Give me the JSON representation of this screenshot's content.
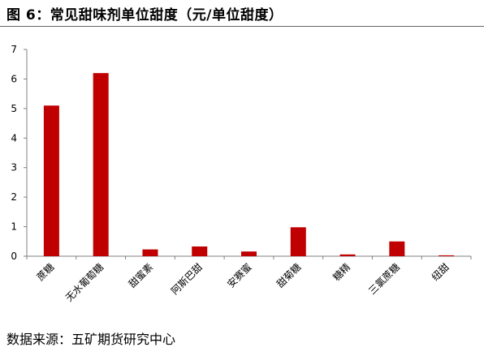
{
  "title": "图 6：常见甜味剂单位甜度（元/单位甜度）",
  "source": "数据来源：五矿期货研究中心",
  "colors": {
    "bar": "#C00000",
    "axis": "#808080"
  },
  "chart_data": {
    "type": "bar",
    "categories": [
      "蔗糖",
      "无水葡萄糖",
      "甜蜜素",
      "阿斯巴甜",
      "安赛蜜",
      "甜菊糖",
      "糖精",
      "三氯蔗糖",
      "纽甜"
    ],
    "values": [
      5.1,
      6.2,
      0.23,
      0.33,
      0.16,
      0.98,
      0.06,
      0.5,
      0.03
    ],
    "yticks": [
      0,
      1,
      2,
      3,
      4,
      5,
      6,
      7
    ],
    "ylim": [
      0,
      7
    ],
    "grid": false,
    "xlabel": "",
    "ylabel": ""
  }
}
